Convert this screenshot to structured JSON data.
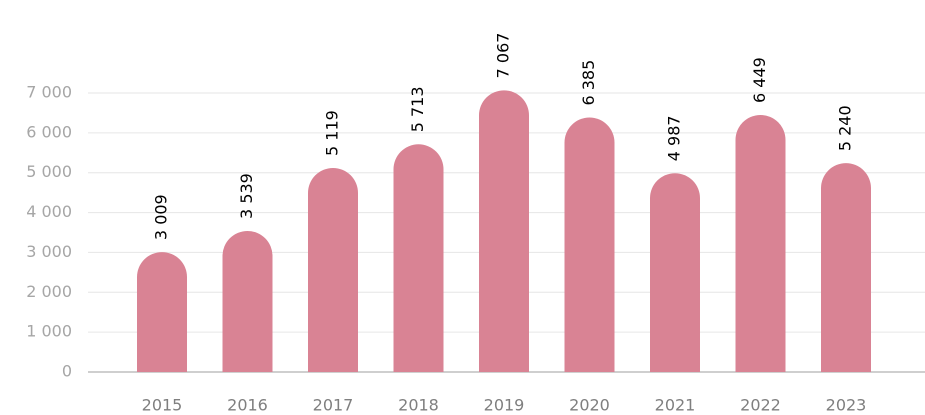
{
  "chart_data": {
    "type": "bar",
    "categories": [
      "2015",
      "2016",
      "2017",
      "2018",
      "2019",
      "2020",
      "2021",
      "2022",
      "2023"
    ],
    "values": [
      3009,
      3539,
      5119,
      5713,
      7067,
      6385,
      4987,
      6449,
      5240
    ],
    "value_labels": [
      "3 009",
      "3 539",
      "5 119",
      "5 713",
      "7 067",
      "6 385",
      "4 987",
      "6 449",
      "5 240"
    ],
    "color": "#d98394",
    "ylim": [
      0,
      7000
    ],
    "yticks": [
      0,
      {
        "value": 1000,
        "label": "1 000"
      },
      {
        "value": 2000,
        "label": "2 000"
      },
      {
        "value": 3000,
        "label": "3 000"
      },
      {
        "value": 4000,
        "label": "4 000"
      },
      {
        "value": 5000,
        "label": "5 000"
      },
      {
        "value": 6000,
        "label": "6 000"
      },
      {
        "value": 7000,
        "label": "7 000"
      }
    ],
    "grid": true
  }
}
